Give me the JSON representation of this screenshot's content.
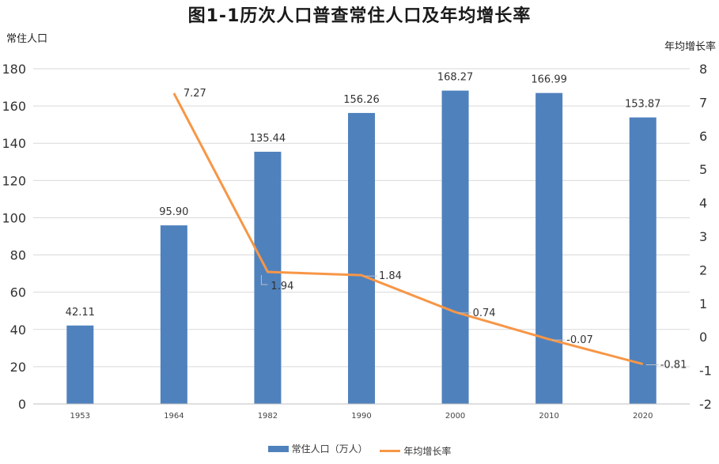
{
  "chart_data": {
    "type": "bar+line",
    "title": "图1-1历次人口普查常住人口及年均增长率",
    "categories": [
      "1953",
      "1964",
      "1982",
      "1990",
      "2000",
      "2010",
      "2020"
    ],
    "series": [
      {
        "name": "常住人口（万人）",
        "kind": "bar",
        "axis": "left",
        "color": "#4f81bd",
        "values": [
          42.11,
          95.9,
          135.44,
          156.26,
          168.27,
          166.99,
          153.87
        ],
        "labels": [
          "42.11",
          "95.90",
          "135.44",
          "156.26",
          "168.27",
          "166.99",
          "153.87"
        ]
      },
      {
        "name": "年均增长率",
        "kind": "line",
        "axis": "right",
        "color": "#f79646",
        "values": [
          null,
          7.27,
          1.94,
          1.84,
          0.74,
          -0.07,
          -0.81
        ],
        "labels": [
          "",
          "7.27",
          "1.94",
          "1.84",
          "0.74",
          "-0.07",
          "-0.81"
        ]
      }
    ],
    "y_left": {
      "label": "常住人口",
      "ylim": [
        0,
        180
      ],
      "ticks": [
        0,
        20,
        40,
        60,
        80,
        100,
        120,
        140,
        160,
        180
      ]
    },
    "y_right": {
      "label": "年均增长率",
      "ylim": [
        -2,
        8
      ],
      "ticks": [
        -2,
        -1,
        0,
        1,
        2,
        3,
        4,
        5,
        6,
        7,
        8
      ]
    },
    "grid": true,
    "legend": "bottom"
  }
}
